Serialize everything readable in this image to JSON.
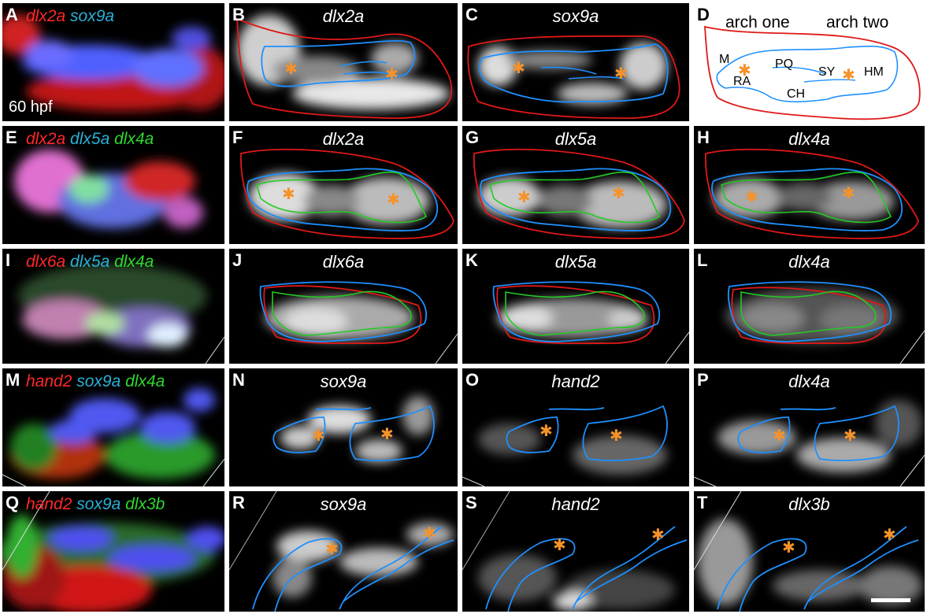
{
  "colors": {
    "red_channel": "#ff2828",
    "blue_channel": "#2ab0d8",
    "green_channel": "#2ed82e",
    "outline_red": "#e01818",
    "outline_blue": "#1e90ff",
    "outline_green": "#22cc22",
    "asterisk": "#f5922a"
  },
  "panels": {
    "A": {
      "letter": "A",
      "genes": [
        "dlx2a",
        "sox9a"
      ],
      "time_label": "60 hpf"
    },
    "B": {
      "letter": "B",
      "title": "dlx2a"
    },
    "C": {
      "letter": "C",
      "title": "sox9a"
    },
    "D": {
      "letter": "D",
      "arch_one": "arch one",
      "arch_two": "arch two",
      "labels": {
        "M": "M",
        "PQ": "PQ",
        "RA": "RA",
        "SY": "SY",
        "HM": "HM",
        "CH": "CH"
      }
    },
    "E": {
      "letter": "E",
      "genes": [
        "dlx2a",
        "dlx5a",
        "dlx4a"
      ]
    },
    "F": {
      "letter": "F",
      "title": "dlx2a"
    },
    "G": {
      "letter": "G",
      "title": "dlx5a"
    },
    "H": {
      "letter": "H",
      "title": "dlx4a"
    },
    "I": {
      "letter": "I",
      "genes": [
        "dlx6a",
        "dlx5a",
        "dlx4a"
      ]
    },
    "J": {
      "letter": "J",
      "title": "dlx6a"
    },
    "K": {
      "letter": "K",
      "title": "dlx5a"
    },
    "L": {
      "letter": "L",
      "title": "dlx4a"
    },
    "M": {
      "letter": "M",
      "genes": [
        "hand2",
        "sox9a",
        "dlx4a"
      ]
    },
    "N": {
      "letter": "N",
      "title": "sox9a"
    },
    "O": {
      "letter": "O",
      "title": "hand2"
    },
    "P": {
      "letter": "P",
      "title": "dlx4a"
    },
    "Q": {
      "letter": "Q",
      "genes": [
        "hand2",
        "sox9a",
        "dlx3b"
      ]
    },
    "R": {
      "letter": "R",
      "title": "sox9a"
    },
    "S": {
      "letter": "S",
      "title": "hand2"
    },
    "T": {
      "letter": "T",
      "title": "dlx3b"
    }
  }
}
